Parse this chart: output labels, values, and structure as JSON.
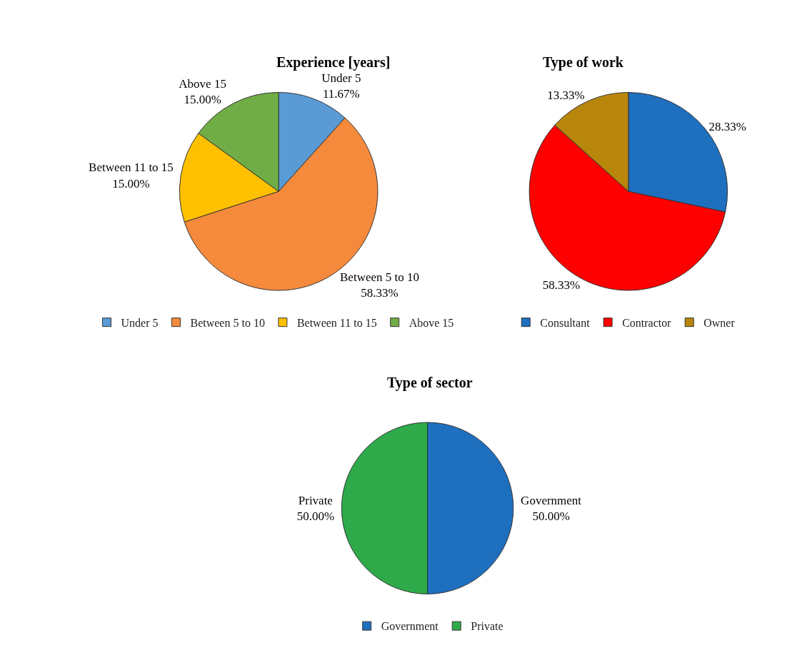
{
  "chart_data": [
    {
      "type": "pie",
      "title": "Experience [years]",
      "categories": [
        "Under 5",
        "Between 5 to 10",
        "Between 11 to 15",
        "Above 15"
      ],
      "values": [
        11.67,
        58.33,
        15.0,
        15.0
      ],
      "colors": [
        "#5b9bd5",
        "#f58a3c",
        "#ffc000",
        "#70ad47"
      ],
      "value_labels": [
        "Under 5\n11.67%",
        "Between 5 to 10\n58.33%",
        "Between 11 to 15\n15.00%",
        "Above 15\n15.00%"
      ],
      "legend": "bottom"
    },
    {
      "type": "pie",
      "title": "Type of work",
      "categories": [
        "Consultant",
        "Contractor",
        "Owner"
      ],
      "values": [
        28.33,
        58.33,
        13.33
      ],
      "colors": [
        "#1f6fbf",
        "#ff0000",
        "#b8860b"
      ],
      "value_labels": [
        "28.33%",
        "58.33%",
        "13.33%"
      ],
      "legend": "bottom"
    },
    {
      "type": "pie",
      "title": "Type of sector",
      "categories": [
        "Government",
        "Private"
      ],
      "values": [
        50.0,
        50.0
      ],
      "colors": [
        "#1f6fbf",
        "#2eaa4a"
      ],
      "value_labels": [
        "Government\n50.00%",
        "Private\n50.00%"
      ],
      "legend": "bottom"
    }
  ]
}
